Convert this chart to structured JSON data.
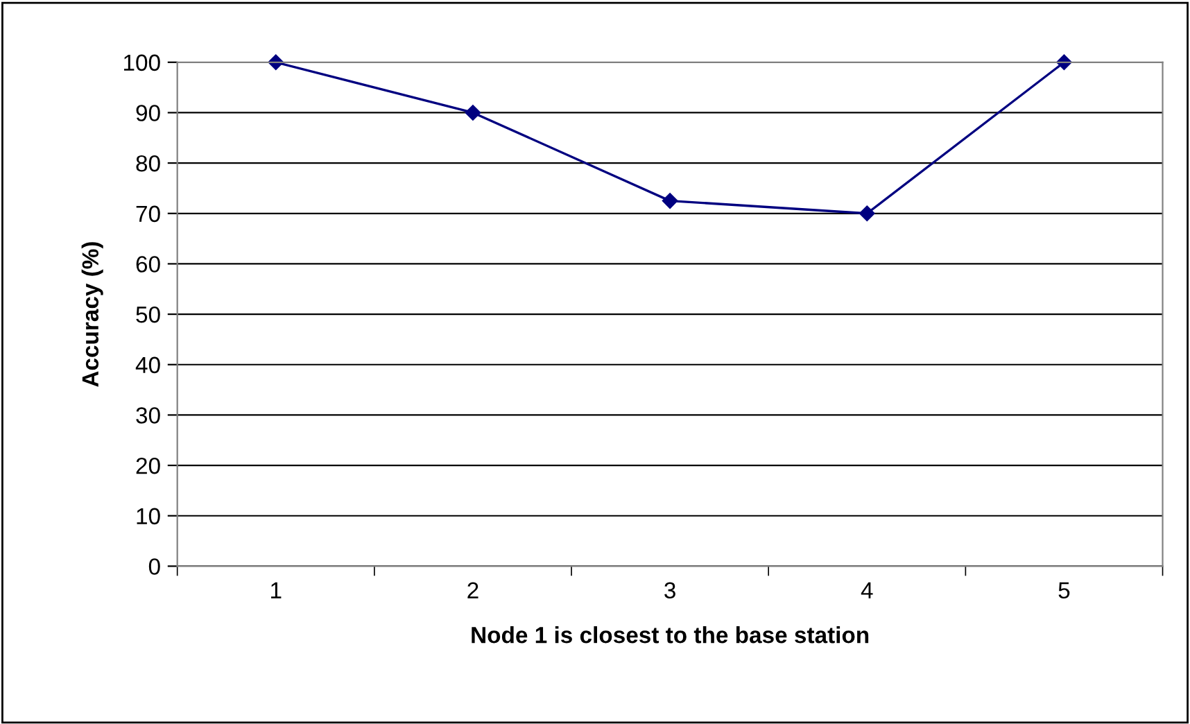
{
  "chart_data": {
    "type": "line",
    "xlabel": "Node 1 is closest to the base station",
    "ylabel": "Accuracy (%)",
    "categories": [
      "1",
      "2",
      "3",
      "4",
      "5"
    ],
    "series": [
      {
        "color": "#000080",
        "values": [
          100,
          90,
          72.5,
          70,
          100
        ]
      }
    ],
    "ylim": [
      0,
      100
    ],
    "yticks": [
      0,
      10,
      20,
      30,
      40,
      50,
      60,
      70,
      80,
      90,
      100
    ],
    "grid": "y",
    "marker": "diamond",
    "line_style": "solid"
  }
}
